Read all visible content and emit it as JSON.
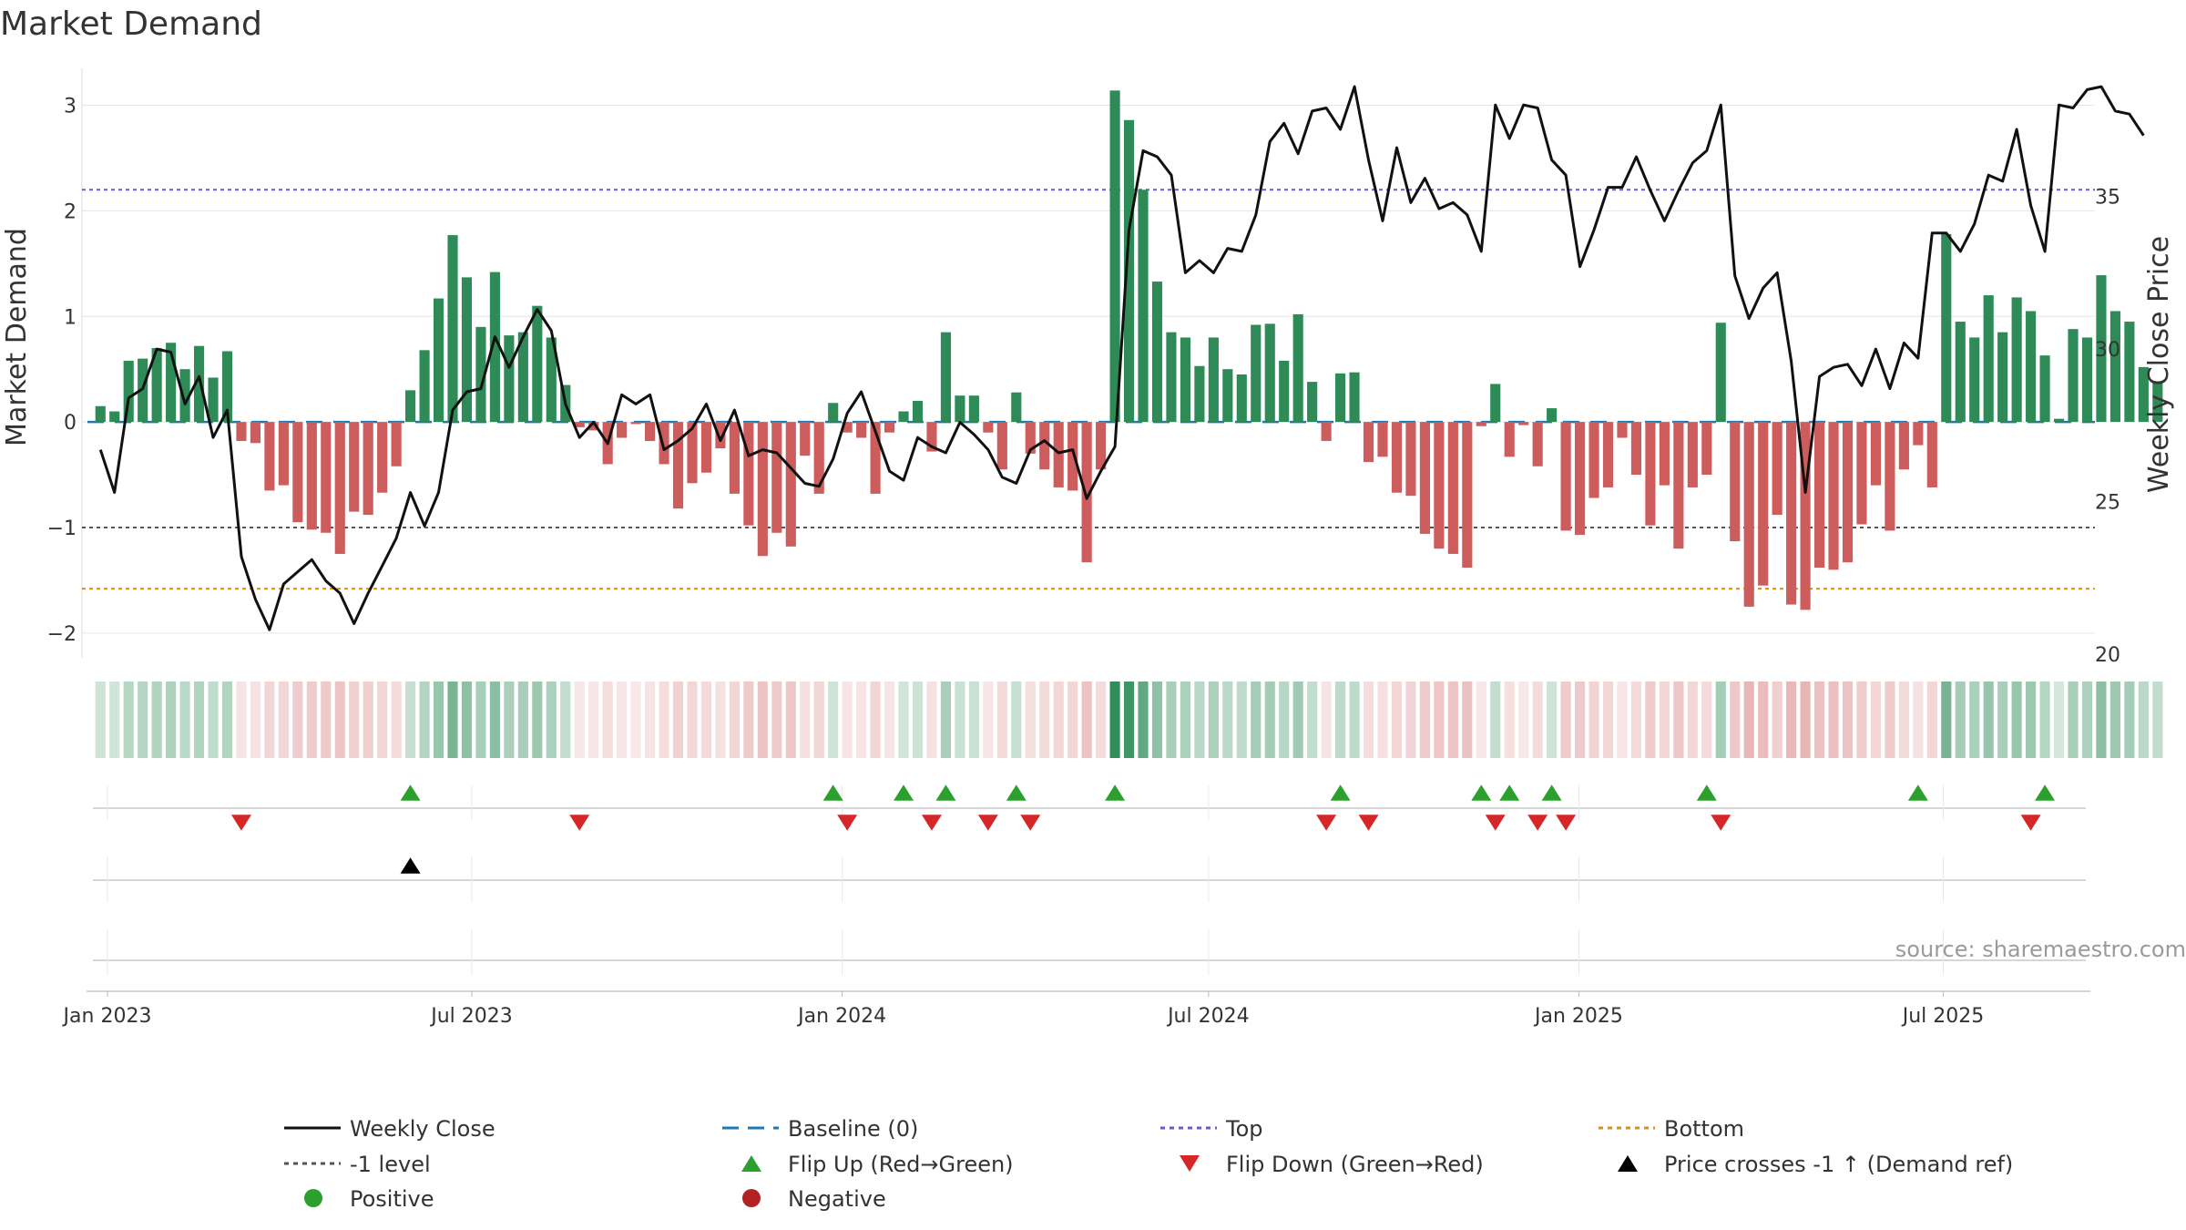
{
  "chart_data": {
    "type": "bar+line",
    "title": "Market Demand",
    "source": "source: sharemaestro.com",
    "left_axis": {
      "label": "Market Demand",
      "ylim": [
        -2.2,
        3.35
      ],
      "ticks": [
        3,
        2,
        1,
        0,
        -1,
        -2
      ],
      "tick_labels": [
        "3",
        "2",
        "1",
        "0",
        "−1",
        "−2"
      ]
    },
    "right_axis": {
      "label": "Weekly Close Price",
      "ylim": [
        20.0,
        39.2
      ],
      "ticks": [
        35,
        30,
        25,
        20
      ],
      "tick_labels": [
        "35",
        "30",
        "25",
        "20"
      ]
    },
    "x_axis": {
      "start": "2022-12-25",
      "week_days": 7,
      "end_day": 1000,
      "ticks": [
        {
          "label": "Jan 2023",
          "day": 7
        },
        {
          "label": "Jul 2023",
          "day": 188
        },
        {
          "label": "Jan 2024",
          "day": 372
        },
        {
          "label": "Jul 2024",
          "day": 554
        },
        {
          "label": "Jan 2025",
          "day": 738
        },
        {
          "label": "Jul 2025",
          "day": 919
        }
      ]
    },
    "levels": {
      "top": 2.2,
      "bottom": -1.58,
      "minus_one": -1.0,
      "baseline": 0
    },
    "demand": [
      0.15,
      0.1,
      0.58,
      0.6,
      0.7,
      0.75,
      0.5,
      0.72,
      0.42,
      0.67,
      -0.18,
      -0.2,
      -0.65,
      -0.6,
      -0.95,
      -1.02,
      -1.05,
      -1.25,
      -0.85,
      -0.88,
      -0.67,
      -0.42,
      0.3,
      0.68,
      1.17,
      1.77,
      1.37,
      0.9,
      1.42,
      0.82,
      0.85,
      1.1,
      0.8,
      0.35,
      -0.05,
      -0.08,
      -0.4,
      -0.15,
      -0.02,
      -0.18,
      -0.4,
      -0.82,
      -0.58,
      -0.48,
      -0.25,
      -0.68,
      -0.98,
      -1.27,
      -1.05,
      -1.18,
      -0.32,
      -0.68,
      0.18,
      -0.1,
      -0.15,
      -0.68,
      -0.1,
      0.1,
      0.2,
      -0.28,
      0.85,
      0.25,
      0.25,
      -0.1,
      -0.45,
      0.28,
      -0.3,
      -0.45,
      -0.62,
      -0.65,
      -1.33,
      -0.45,
      3.14,
      2.86,
      2.2,
      1.33,
      0.85,
      0.8,
      0.53,
      0.8,
      0.5,
      0.45,
      0.92,
      0.93,
      0.58,
      1.02,
      0.38,
      -0.18,
      0.46,
      0.47,
      -0.38,
      -0.33,
      -0.67,
      -0.7,
      -1.06,
      -1.2,
      -1.25,
      -1.38,
      -0.04,
      0.36,
      -0.33,
      -0.03,
      -0.42,
      0.13,
      -1.03,
      -1.07,
      -0.72,
      -0.62,
      -0.15,
      -0.5,
      -0.98,
      -0.6,
      -1.2,
      -0.62,
      -0.5,
      0.94,
      -1.13,
      -1.75,
      -1.55,
      -0.88,
      -1.73,
      -1.78,
      -1.38,
      -1.4,
      -1.33,
      -0.97,
      -0.6,
      -1.03,
      -0.45,
      -0.22,
      -0.62,
      1.78,
      0.95,
      0.8,
      1.2,
      0.85,
      1.18,
      1.05,
      0.63,
      0.03,
      0.88,
      0.8,
      1.39,
      1.05,
      0.95,
      0.52,
      0.37
    ],
    "close": [
      26.7,
      25.3,
      28.4,
      28.7,
      30.0,
      29.9,
      28.2,
      29.1,
      27.1,
      28.0,
      23.2,
      21.8,
      20.8,
      22.3,
      22.7,
      23.1,
      22.4,
      22.0,
      21.0,
      22.0,
      22.9,
      23.8,
      25.3,
      24.2,
      25.3,
      28.0,
      28.6,
      28.7,
      30.4,
      29.4,
      30.4,
      31.3,
      30.6,
      28.2,
      27.1,
      27.6,
      26.9,
      28.5,
      28.2,
      28.5,
      26.7,
      27.0,
      27.4,
      28.2,
      27.0,
      28.0,
      26.5,
      26.7,
      26.6,
      26.1,
      25.6,
      25.5,
      26.4,
      27.9,
      28.6,
      27.3,
      26.0,
      25.7,
      27.1,
      26.8,
      26.6,
      27.6,
      27.2,
      26.7,
      25.8,
      25.6,
      26.7,
      27.0,
      26.6,
      26.7,
      25.1,
      26.0,
      26.8,
      33.9,
      36.5,
      36.3,
      35.7,
      32.5,
      32.9,
      32.5,
      33.3,
      33.2,
      34.4,
      36.8,
      37.4,
      36.4,
      37.8,
      37.9,
      37.2,
      38.6,
      36.2,
      34.2,
      36.6,
      34.8,
      35.6,
      34.6,
      34.8,
      34.4,
      33.2,
      38.0,
      36.9,
      38.0,
      37.9,
      36.2,
      35.7,
      32.7,
      33.9,
      35.3,
      35.3,
      36.3,
      35.2,
      34.2,
      35.2,
      36.1,
      36.5,
      38.0,
      32.4,
      31.0,
      32.0,
      32.5,
      29.6,
      25.3,
      29.1,
      29.4,
      29.5,
      28.8,
      30.0,
      28.7,
      30.2,
      29.7,
      33.8,
      33.8,
      33.2,
      34.1,
      35.7,
      35.5,
      37.2,
      34.7,
      33.2,
      38.0,
      37.9,
      38.5,
      38.6,
      37.8,
      37.7,
      37.0
    ],
    "flip_up": [
      22,
      52,
      57,
      60,
      65,
      72,
      88,
      98,
      100,
      103,
      114,
      129,
      138
    ],
    "flip_down": [
      10,
      34,
      53,
      59,
      63,
      66,
      87,
      90,
      99,
      102,
      104,
      115,
      137
    ],
    "price_cross": [
      22
    ],
    "colors": {
      "positive_bar": "#2e8b57",
      "negative_bar": "#cd5c5c",
      "close_line": "#111111",
      "baseline": "#1f77b4",
      "top": "#6a5acd",
      "bottom": "#e08e0b",
      "minus_one": "#555555",
      "flip_up": "#2ca02c",
      "flip_down": "#d62728",
      "price_cross": "#000000",
      "legend_positive": "#2ca02c",
      "legend_negative": "#b22222"
    },
    "legend": [
      {
        "label": "Weekly Close",
        "kind": "line",
        "color": "#111111"
      },
      {
        "label": "Baseline (0)",
        "kind": "dash",
        "color": "#1f77b4"
      },
      {
        "label": "Top",
        "kind": "dot",
        "color": "#6a5acd"
      },
      {
        "label": "Bottom",
        "kind": "dot",
        "color": "#e08e0b"
      },
      {
        "label": "-1 level",
        "kind": "dot",
        "color": "#555555"
      },
      {
        "label": "Flip Up (Red→Green)",
        "kind": "tri-up",
        "color": "#2ca02c"
      },
      {
        "label": "Flip Down (Green→Red)",
        "kind": "tri-down",
        "color": "#d62728"
      },
      {
        "label": "Price crosses -1 ↑ (Demand ref)",
        "kind": "tri-up",
        "color": "#000000"
      },
      {
        "label": "Positive",
        "kind": "circle",
        "color": "#2ca02c"
      },
      {
        "label": "Negative",
        "kind": "circle",
        "color": "#b22222"
      }
    ]
  }
}
